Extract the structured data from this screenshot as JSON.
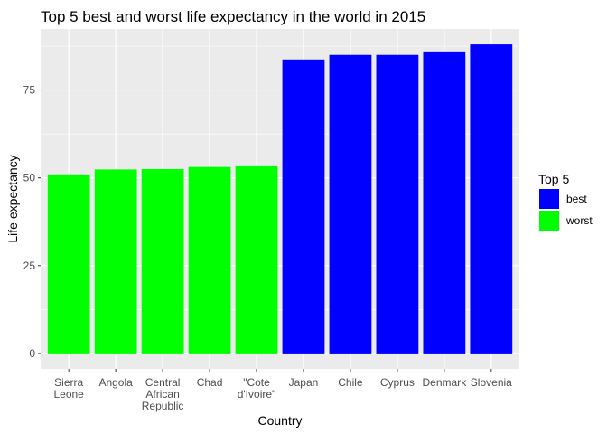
{
  "chart_data": {
    "type": "bar",
    "title": "Top 5 best and worst life expectancy in the world in 2015",
    "xlabel": "Country",
    "ylabel": "Life expectancy",
    "categories": [
      [
        "Sierra",
        "Leone"
      ],
      [
        "Angola"
      ],
      [
        "Central",
        "African",
        "Republic"
      ],
      [
        "Chad"
      ],
      [
        "\"Cote",
        "d'Ivoire\""
      ],
      [
        "Japan"
      ],
      [
        "Chile"
      ],
      [
        "Cyprus"
      ],
      [
        "Denmark"
      ],
      [
        "Slovenia"
      ]
    ],
    "values": [
      51.0,
      52.4,
      52.5,
      53.1,
      53.3,
      83.7,
      85.0,
      85.0,
      86.0,
      88.0
    ],
    "groups": [
      "worst",
      "worst",
      "worst",
      "worst",
      "worst",
      "best",
      "best",
      "best",
      "best",
      "best"
    ],
    "yticks": [
      0,
      25,
      50,
      75
    ],
    "ylim": [
      -4.4,
      92.4
    ],
    "grid": true,
    "legend": {
      "title": "Top 5",
      "placement": "right",
      "entries": [
        {
          "label": "best",
          "color": "#0000FF"
        },
        {
          "label": "worst",
          "color": "#00FF00"
        }
      ]
    },
    "colors": {
      "best": "#0000FF",
      "worst": "#00FF00",
      "panel": "#EBEBEB",
      "grid": "#FFFFFF"
    }
  }
}
